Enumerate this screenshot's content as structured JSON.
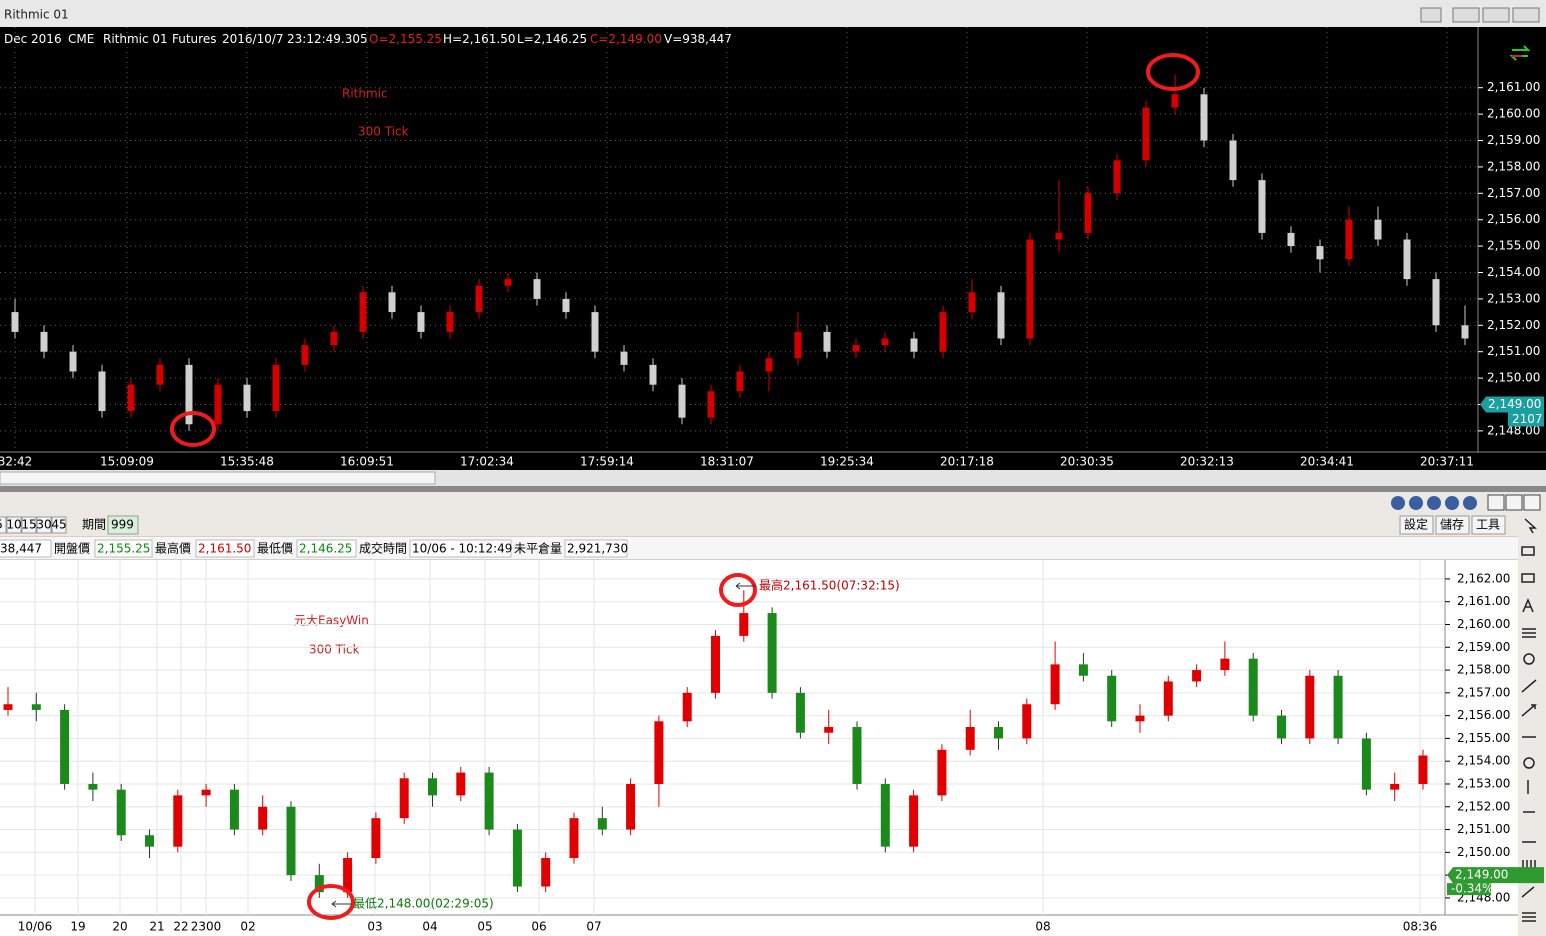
{
  "top_window": {
    "title": "Rithmic 01",
    "info": [
      "Dec 2016",
      "CME",
      "Rithmic 01",
      "Futures",
      "2016/10/7",
      "23:12:49.305",
      "O=2,155.25",
      "H=2,161.50",
      "L=2,146.25",
      "C=2,149.00",
      "V=938,447"
    ],
    "volume_tag": "2107"
  },
  "bottom_window": {
    "periods": [
      "5",
      "10",
      "15",
      "30",
      "45"
    ],
    "period_label": "期間",
    "period_value": "999",
    "buttons": [
      "設定",
      "儲存",
      "工具"
    ],
    "info": [
      "38,447",
      "開盤價",
      "2,155.25",
      "最高價",
      "2,161.50",
      "最低價",
      "2,146.25",
      "成交時間",
      "10/06 - 10:12:49",
      "未平倉量",
      "2,921,730"
    ]
  },
  "chart_data": [
    {
      "type": "candlestick",
      "grid": true,
      "up_color": "#d40000",
      "down_color": "#d0d0d0",
      "annotations": [
        "Rithmic",
        "300 Tick"
      ],
      "x_labels": [
        "32:42",
        "15:09:09",
        "15:35:48",
        "16:09:51",
        "17:02:34",
        "17:59:14",
        "18:31:07",
        "19:25:34",
        "20:17:18",
        "20:30:35",
        "20:32:13",
        "20:34:41",
        "20:37:11"
      ],
      "ylim": [
        2147.2,
        2163.3
      ],
      "yticks": [
        {
          "value": 2148,
          "label": "2,148.00"
        },
        {
          "value": 2149,
          "label": "2,149.00"
        },
        {
          "value": 2150,
          "label": "2,150.00"
        },
        {
          "value": 2151,
          "label": "2,151.00"
        },
        {
          "value": 2152,
          "label": "2,152.00"
        },
        {
          "value": 2153,
          "label": "2,153.00"
        },
        {
          "value": 2154,
          "label": "2,154.00"
        },
        {
          "value": 2155,
          "label": "2,155.00"
        },
        {
          "value": 2156,
          "label": "2,156.00"
        },
        {
          "value": 2157,
          "label": "2,157.00"
        },
        {
          "value": 2158,
          "label": "2,158.00"
        },
        {
          "value": 2159,
          "label": "2,159.00"
        },
        {
          "value": 2160,
          "label": "2,160.00"
        },
        {
          "value": 2161,
          "label": "2,161.00"
        }
      ],
      "last_price": {
        "value": 2149,
        "label": "2,149.00"
      },
      "open": [
        2152.5,
        2151.75,
        2151.0,
        2150.25,
        2148.75,
        2149.75,
        2150.5,
        2148.25,
        2149.75,
        2148.75,
        2150.5,
        2151.25,
        2151.75,
        2153.25,
        2152.5,
        2151.75,
        2152.5,
        2153.5,
        2153.75,
        2153.0,
        2152.5,
        2151.0,
        2150.5,
        2149.75,
        2148.5,
        2149.5,
        2150.25,
        2150.75,
        2151.75,
        2151.0,
        2151.25,
        2151.5,
        2151.0,
        2152.5,
        2153.25,
        2151.5,
        2155.25,
        2155.5,
        2157.0,
        2158.25,
        2160.25,
        2160.75,
        2159.0,
        2157.5,
        2155.5,
        2155.0,
        2154.5,
        2156.0,
        2155.25,
        2153.75,
        2152.0
      ],
      "high": [
        2153.0,
        2152.0,
        2151.25,
        2150.5,
        2150.0,
        2150.75,
        2150.75,
        2150.0,
        2150.0,
        2150.75,
        2151.5,
        2152.0,
        2153.5,
        2153.5,
        2152.75,
        2152.75,
        2153.75,
        2154.0,
        2154.0,
        2153.25,
        2152.75,
        2151.25,
        2150.75,
        2150.0,
        2149.75,
        2150.5,
        2151.0,
        2152.5,
        2152.0,
        2151.5,
        2151.75,
        2151.75,
        2152.75,
        2153.75,
        2153.5,
        2155.5,
        2157.5,
        2157.25,
        2158.5,
        2160.5,
        2161.5,
        2161.0,
        2159.25,
        2157.75,
        2155.75,
        2155.25,
        2156.5,
        2156.5,
        2155.5,
        2154.0,
        2152.75
      ],
      "low": [
        2151.5,
        2150.75,
        2150.0,
        2148.5,
        2148.5,
        2149.5,
        2148.0,
        2148.0,
        2148.5,
        2148.5,
        2150.25,
        2151.0,
        2151.5,
        2152.25,
        2151.5,
        2151.5,
        2152.25,
        2153.25,
        2152.75,
        2152.25,
        2150.75,
        2150.25,
        2149.5,
        2148.25,
        2148.25,
        2149.25,
        2149.5,
        2150.5,
        2150.75,
        2150.75,
        2151.0,
        2150.75,
        2150.75,
        2152.25,
        2151.25,
        2151.25,
        2154.75,
        2155.25,
        2156.75,
        2158.0,
        2160.0,
        2158.75,
        2157.25,
        2155.25,
        2154.75,
        2154.0,
        2154.25,
        2155.0,
        2153.5,
        2151.75,
        2151.25
      ],
      "close": [
        2151.75,
        2151.0,
        2150.25,
        2148.75,
        2149.75,
        2150.5,
        2148.25,
        2149.75,
        2148.75,
        2150.5,
        2151.25,
        2151.75,
        2153.25,
        2152.5,
        2151.75,
        2152.5,
        2153.5,
        2153.75,
        2153.0,
        2152.5,
        2151.0,
        2150.5,
        2149.75,
        2148.5,
        2149.5,
        2150.25,
        2150.75,
        2151.75,
        2151.0,
        2151.25,
        2151.5,
        2151.0,
        2152.5,
        2153.25,
        2151.5,
        2155.25,
        2155.5,
        2157.0,
        2158.25,
        2160.25,
        2160.75,
        2159.0,
        2157.5,
        2155.5,
        2155.0,
        2154.5,
        2156.0,
        2155.25,
        2153.75,
        2152.0,
        2151.5
      ]
    },
    {
      "type": "candlestick",
      "grid": true,
      "up_color": "#e00000",
      "down_color": "#1a8a1a",
      "annotations": [
        "元大EasyWin",
        "300 Tick"
      ],
      "high_note": "最高2,161.50(07:32:15)",
      "low_note": "最低2,148.00(02:29:05)",
      "x_labels": [
        "10/06",
        "19",
        "20",
        "21",
        "22",
        "2300",
        "02",
        "03",
        "04",
        "05",
        "06",
        "07",
        "08",
        "08:36"
      ],
      "ylim": [
        2147.25,
        2162.83
      ],
      "yticks": [
        {
          "value": 2148,
          "label": "2,148.00"
        },
        {
          "value": 2149,
          "label": "2,149.00"
        },
        {
          "value": 2150,
          "label": "2,150.00"
        },
        {
          "value": 2151,
          "label": "2,151.00"
        },
        {
          "value": 2152,
          "label": "2,152.00"
        },
        {
          "value": 2153,
          "label": "2,153.00"
        },
        {
          "value": 2154,
          "label": "2,154.00"
        },
        {
          "value": 2155,
          "label": "2,155.00"
        },
        {
          "value": 2156,
          "label": "2,156.00"
        },
        {
          "value": 2157,
          "label": "2,157.00"
        },
        {
          "value": 2158,
          "label": "2,158.00"
        },
        {
          "value": 2159,
          "label": "2,159.00"
        },
        {
          "value": 2160,
          "label": "2,160.00"
        },
        {
          "value": 2161,
          "label": "2,161.00"
        },
        {
          "value": 2162,
          "label": "2,162.00"
        }
      ],
      "last_price": {
        "value": 2149,
        "label": "2,149.00"
      },
      "change_label": "-0.34%",
      "open": [
        2156.25,
        2156.5,
        2156.25,
        2153.0,
        2152.75,
        2150.75,
        2150.25,
        2152.5,
        2152.75,
        2151.0,
        2152.0,
        2149.0,
        2148.25,
        2149.75,
        2151.5,
        2153.25,
        2152.5,
        2153.5,
        2151.0,
        2148.5,
        2149.75,
        2151.5,
        2151.0,
        2153.0,
        2155.75,
        2157.0,
        2159.5,
        2160.5,
        2157.0,
        2155.25,
        2155.5,
        2153.0,
        2150.25,
        2152.5,
        2154.5,
        2155.5,
        2155.0,
        2156.5,
        2158.25,
        2157.75,
        2155.75,
        2156.0,
        2157.5,
        2158.0,
        2158.5,
        2156.0,
        2155.0,
        2157.75,
        2155.0,
        2152.75,
        2153.0
      ],
      "high": [
        2157.25,
        2157.0,
        2156.5,
        2153.5,
        2153.0,
        2151.0,
        2152.75,
        2153.0,
        2153.0,
        2152.5,
        2152.25,
        2149.5,
        2150.0,
        2151.75,
        2153.5,
        2153.5,
        2153.75,
        2153.75,
        2151.25,
        2150.0,
        2151.75,
        2152.0,
        2153.25,
        2156.0,
        2157.25,
        2159.75,
        2161.5,
        2160.75,
        2157.25,
        2156.25,
        2155.75,
        2153.25,
        2152.75,
        2154.75,
        2156.25,
        2155.75,
        2156.75,
        2159.25,
        2158.75,
        2158.0,
        2156.5,
        2157.75,
        2158.25,
        2159.25,
        2158.75,
        2156.25,
        2158.0,
        2158.0,
        2155.25,
        2153.5,
        2154.5
      ],
      "low": [
        2156.0,
        2155.75,
        2152.75,
        2152.25,
        2150.5,
        2149.75,
        2150.0,
        2152.0,
        2150.75,
        2150.75,
        2148.75,
        2148.0,
        2148.0,
        2149.5,
        2151.25,
        2152.0,
        2152.25,
        2150.75,
        2148.25,
        2148.25,
        2149.5,
        2150.75,
        2150.75,
        2152.0,
        2155.5,
        2156.75,
        2159.25,
        2156.75,
        2155.0,
        2154.75,
        2152.75,
        2150.0,
        2150.0,
        2152.25,
        2154.25,
        2154.5,
        2154.75,
        2156.25,
        2157.5,
        2155.5,
        2155.25,
        2155.75,
        2157.25,
        2157.75,
        2155.75,
        2154.75,
        2154.75,
        2154.75,
        2152.5,
        2152.25,
        2152.75
      ],
      "close": [
        2156.5,
        2156.25,
        2153.0,
        2152.75,
        2150.75,
        2150.25,
        2152.5,
        2152.75,
        2151.0,
        2152.0,
        2149.0,
        2148.25,
        2149.75,
        2151.5,
        2153.25,
        2152.5,
        2153.5,
        2151.0,
        2148.5,
        2149.75,
        2151.5,
        2151.0,
        2153.0,
        2155.75,
        2157.0,
        2159.5,
        2160.5,
        2157.0,
        2155.25,
        2155.5,
        2153.0,
        2150.25,
        2152.5,
        2154.5,
        2155.5,
        2155.0,
        2156.5,
        2158.25,
        2157.75,
        2155.75,
        2156.0,
        2157.5,
        2158.0,
        2158.5,
        2156.0,
        2155.0,
        2157.75,
        2155.0,
        2152.75,
        2153.0,
        2154.25
      ]
    }
  ]
}
